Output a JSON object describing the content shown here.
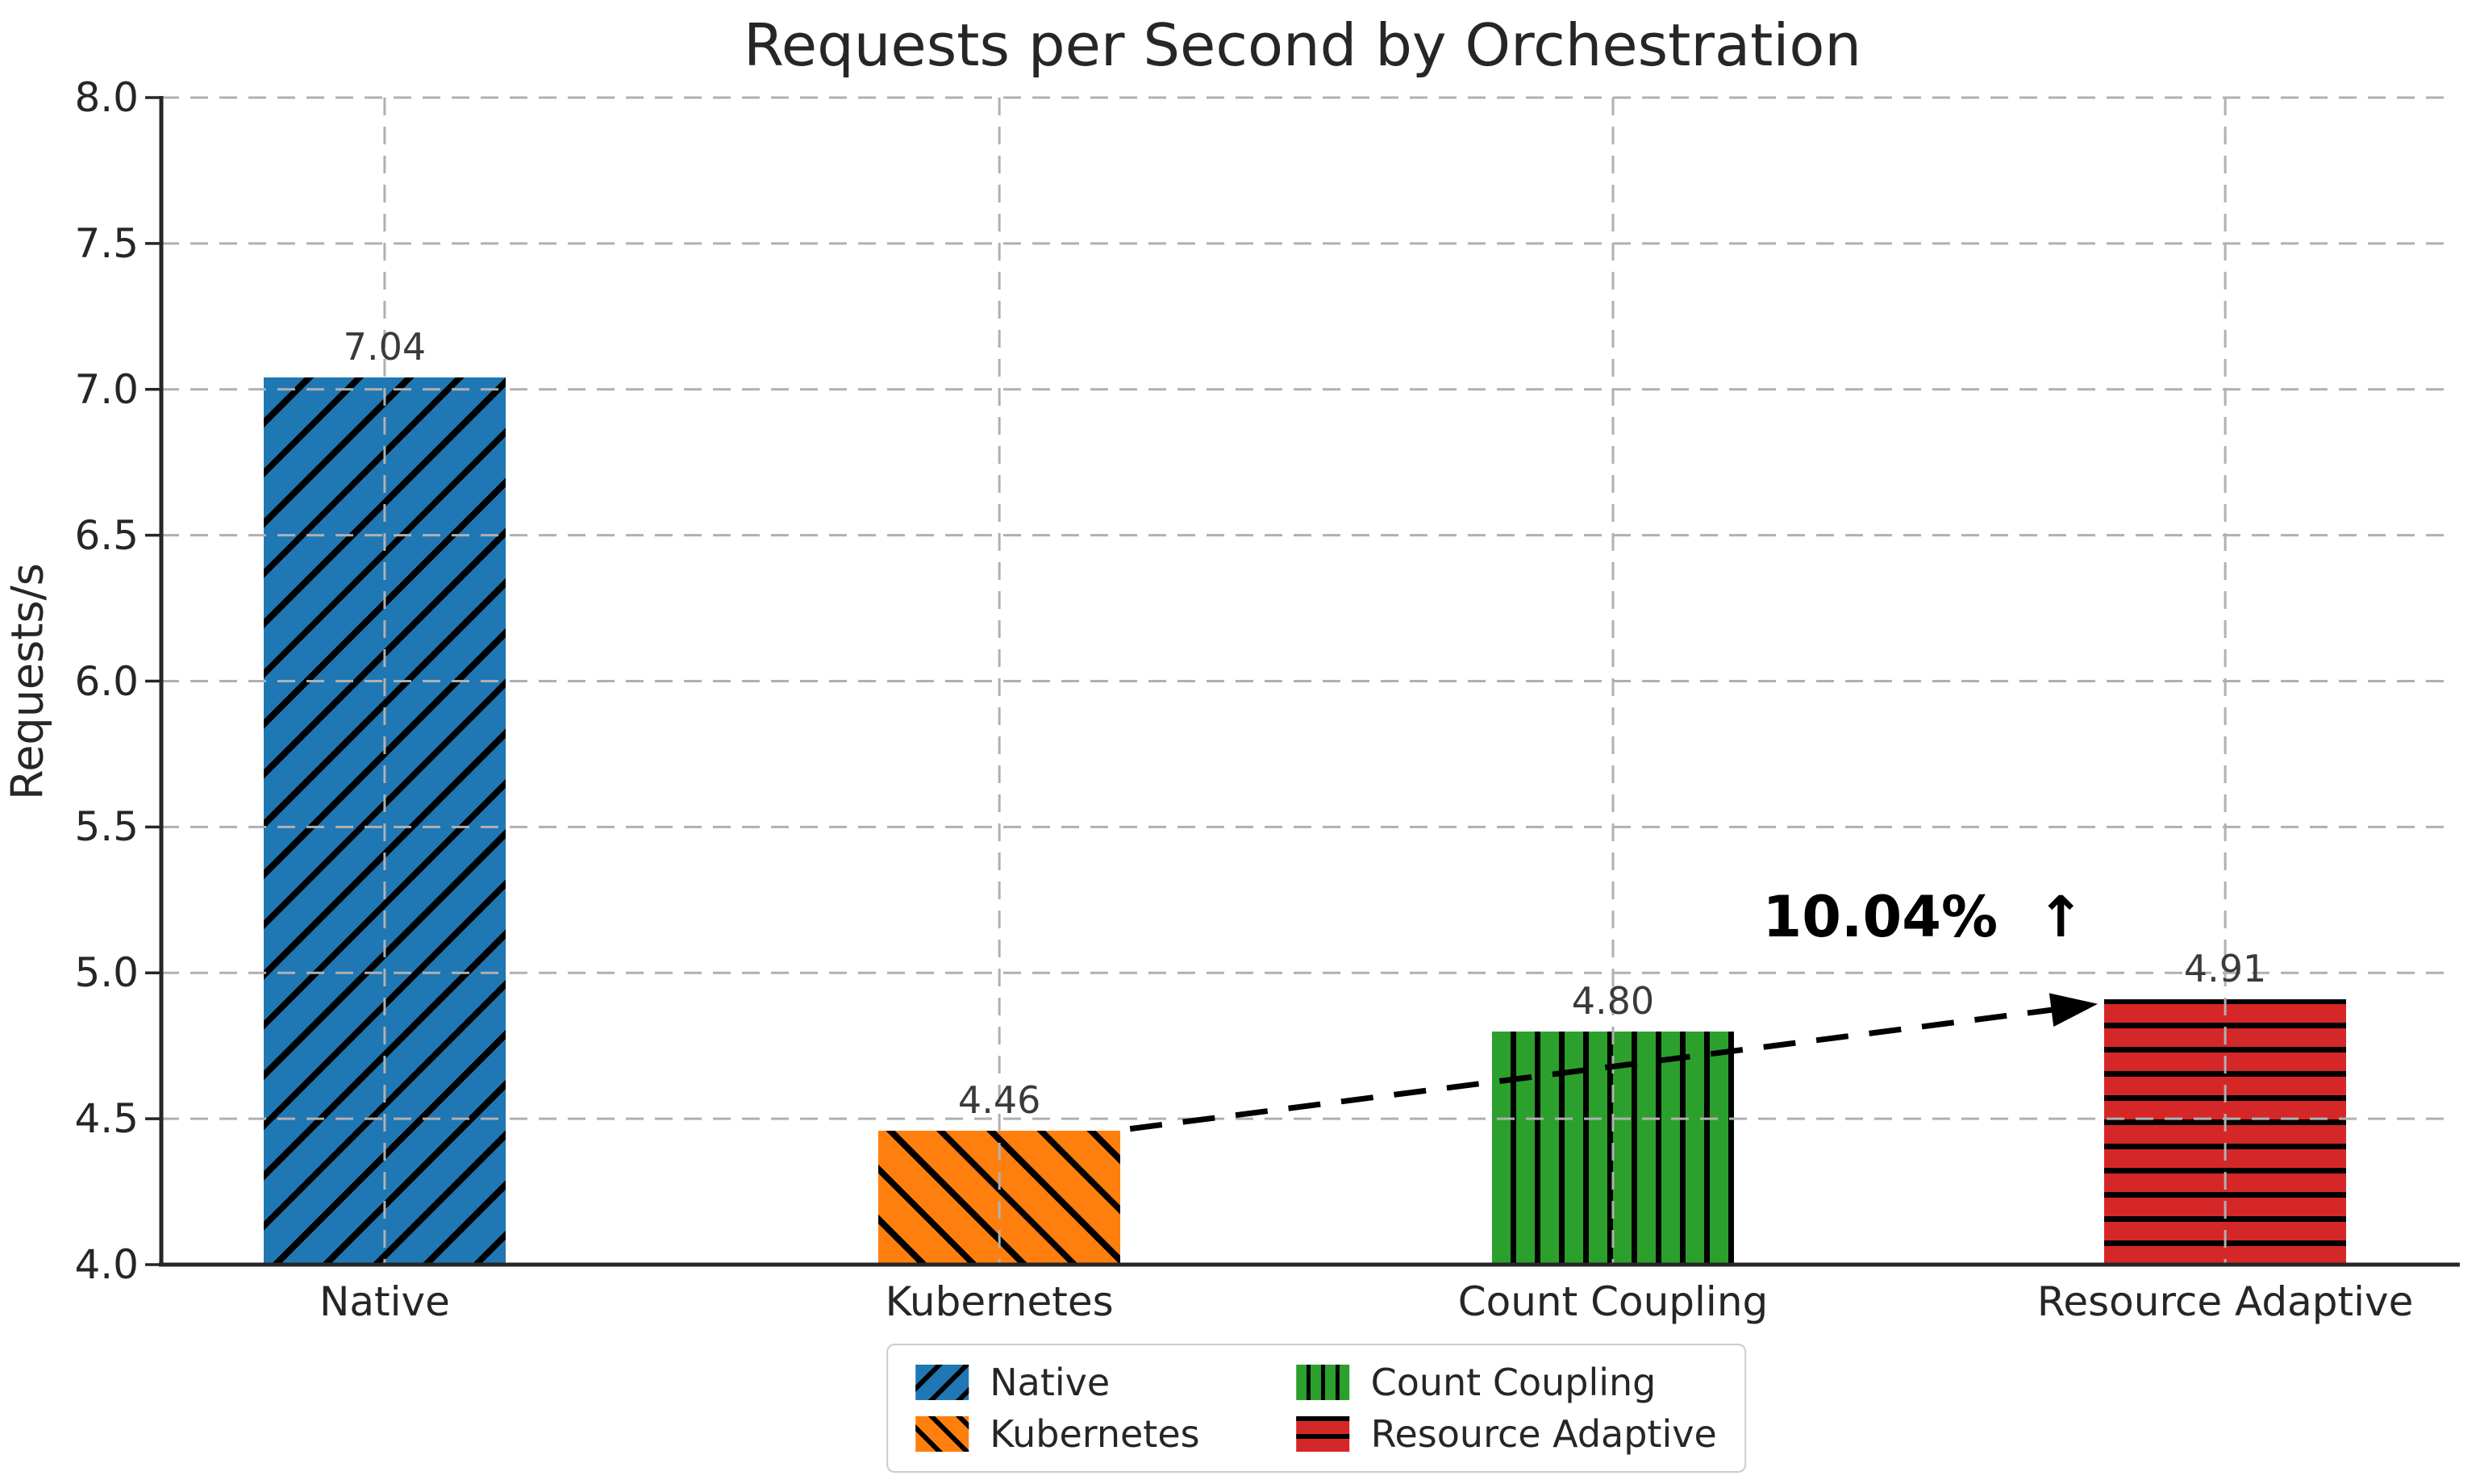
{
  "chart_data": {
    "type": "bar",
    "title": "Requests per Second by Orchestration",
    "xlabel": "",
    "ylabel": "Requests/s",
    "ylim": [
      4.0,
      8.0
    ],
    "yticks": [
      "4.0",
      "4.5",
      "5.0",
      "5.5",
      "6.0",
      "6.5",
      "7.0",
      "7.5",
      "8.0"
    ],
    "grid": true,
    "grid_style": "dashed",
    "categories": [
      "Native",
      "Kubernetes",
      "Count Coupling",
      "Resource Adaptive"
    ],
    "values": [
      7.04,
      4.46,
      4.8,
      4.91
    ],
    "value_labels": [
      "7.04",
      "4.46",
      "4.80",
      "4.91"
    ],
    "bar_colors": [
      "#1f77b4",
      "#ff7f0e",
      "#2ca02c",
      "#d62728"
    ],
    "bar_hatches": [
      "/",
      "\\",
      "|",
      "-"
    ],
    "legend": {
      "position": "bottom-center",
      "columns": 2,
      "entries": [
        "Native",
        "Kubernetes",
        "Count Coupling",
        "Resource Adaptive"
      ]
    },
    "annotation": {
      "text": "10.04%  ↑",
      "from_category": "Kubernetes",
      "to_category": "Resource Adaptive",
      "arrow_style": "dashed"
    },
    "colors": {
      "grid": "#b0b0b0",
      "axis": "#262626",
      "tick_text": "#262626",
      "value_text": "#3a3a3a",
      "annotation": "#000000",
      "legend_border": "#cccccc"
    }
  }
}
